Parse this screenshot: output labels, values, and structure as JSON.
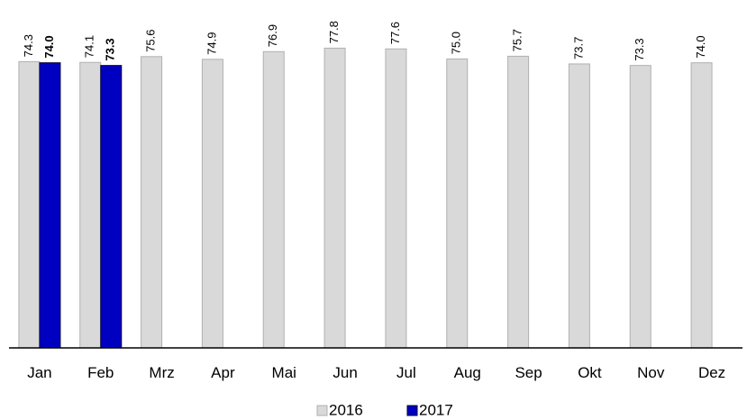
{
  "chart_data": {
    "type": "bar",
    "categories": [
      "Jan",
      "Feb",
      "Mrz",
      "Apr",
      "Mai",
      "Jun",
      "Jul",
      "Aug",
      "Sep",
      "Okt",
      "Nov",
      "Dez"
    ],
    "series": [
      {
        "name": "2016",
        "color": "#d9d9d9",
        "values": [
          74.3,
          74.1,
          75.6,
          74.9,
          76.9,
          77.8,
          77.6,
          75.0,
          75.7,
          73.7,
          73.3,
          74.0
        ],
        "value_labels": [
          "74.3",
          "74.1",
          "75.6",
          "74.9",
          "76.9",
          "77.8",
          "77.6",
          "75.0",
          "75.7",
          "73.7",
          "73.3",
          "74.0"
        ]
      },
      {
        "name": "2017",
        "color": "#0000c0",
        "values": [
          74.0,
          73.3,
          null,
          null,
          null,
          null,
          null,
          null,
          null,
          null,
          null,
          null
        ],
        "value_labels": [
          "74.0",
          "73.3",
          null,
          null,
          null,
          null,
          null,
          null,
          null,
          null,
          null,
          null
        ]
      }
    ],
    "ylim": [
      0,
      80
    ]
  }
}
